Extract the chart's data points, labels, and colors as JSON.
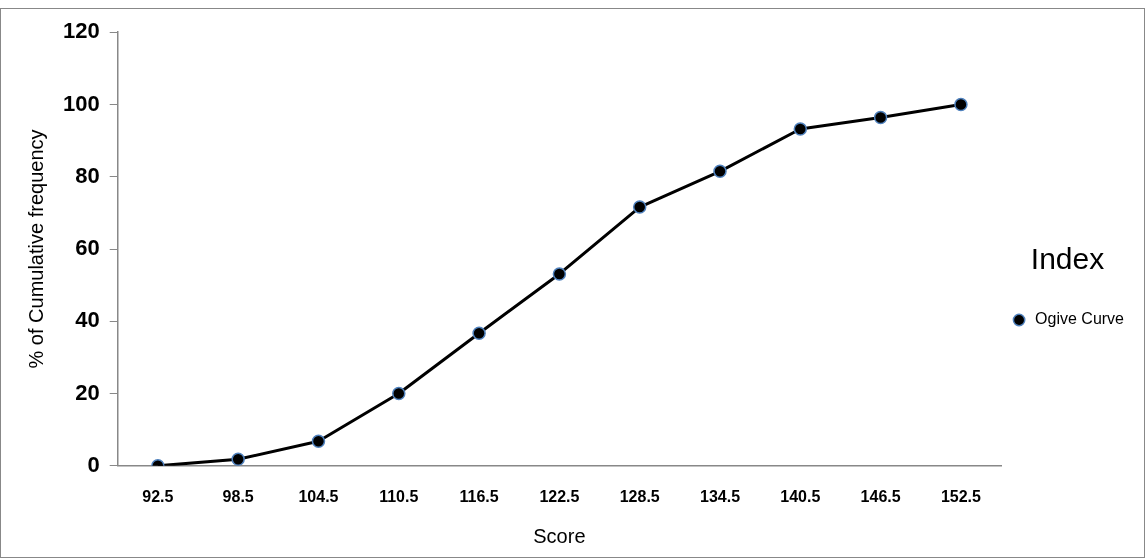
{
  "chart_data": {
    "type": "line",
    "xlabel": "Score",
    "ylabel": "% of Cumulative frequency",
    "legend_title": "Index",
    "categories": [
      "92.5",
      "98.5",
      "104.5",
      "110.5",
      "116.5",
      "122.5",
      "128.5",
      "134.5",
      "140.5",
      "146.5",
      "152.5"
    ],
    "series": [
      {
        "name": "Ogive Curve",
        "color": "#000000",
        "values": [
          0,
          1.8,
          6.8,
          20.0,
          36.7,
          53.1,
          71.6,
          81.5,
          93.2,
          96.4,
          100
        ]
      }
    ],
    "ylim": [
      0,
      120
    ],
    "yticks": [
      0,
      20,
      40,
      60,
      80,
      100,
      120
    ],
    "grid": false,
    "legend": "right",
    "marker": "circle",
    "line_style": "solid"
  }
}
